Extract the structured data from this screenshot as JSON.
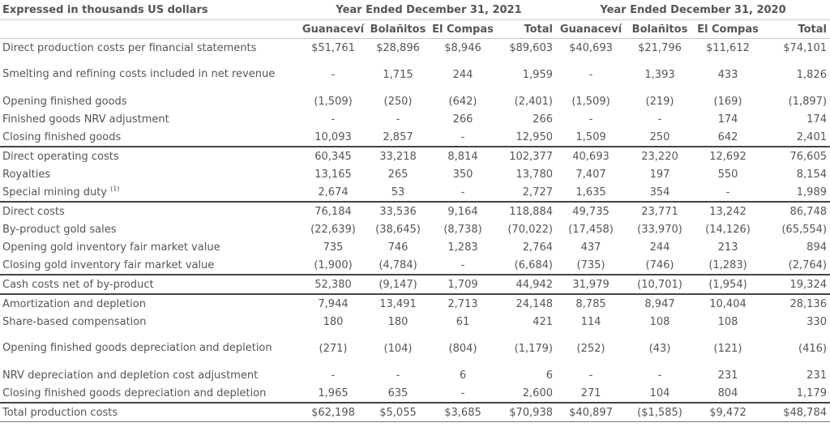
{
  "header": {
    "units_label": "Expressed in thousands US dollars",
    "period_2021": "Year Ended December 31, 2021",
    "period_2020": "Year Ended December 31, 2020",
    "columns": [
      "Guanaceví",
      "Bolañitos",
      "El Compas",
      "Total",
      "Guanaceví",
      "Bolañitos",
      "El Compas",
      "Total"
    ]
  },
  "rows": [
    {
      "label": "Direct production costs per financial statements",
      "values": [
        "$51,761",
        "$28,896",
        "$8,946",
        "$89,603",
        "$40,693",
        "$21,796",
        "$11,612",
        "$74,101"
      ]
    },
    {
      "label": "Smelting and refining costs included in net revenue",
      "values": [
        "-",
        "1,715",
        "244",
        "1,959",
        "-",
        "1,393",
        "433",
        "1,826"
      ]
    },
    {
      "label": "Opening finished goods",
      "values": [
        "(1,509)",
        "(250)",
        "(642)",
        "(2,401)",
        "(1,509)",
        "(219)",
        "(169)",
        "(1,897)"
      ]
    },
    {
      "label": "Finished goods NRV adjustment",
      "values": [
        "-",
        "-",
        "266",
        "266",
        "-",
        "-",
        "174",
        "174"
      ]
    },
    {
      "label": "Closing finished goods",
      "values": [
        "10,093",
        "2,857",
        "-",
        "12,950",
        "1,509",
        "250",
        "642",
        "2,401"
      ]
    },
    {
      "label": "Direct operating costs",
      "values": [
        "60,345",
        "33,218",
        "8,814",
        "102,377",
        "40,693",
        "23,220",
        "12,692",
        "76,605"
      ]
    },
    {
      "label": "Royalties",
      "values": [
        "13,165",
        "265",
        "350",
        "13,780",
        "7,407",
        "197",
        "550",
        "8,154"
      ]
    },
    {
      "label": "Special mining duty",
      "note": "(1)",
      "values": [
        "2,674",
        "53",
        "-",
        "2,727",
        "1,635",
        "354",
        "-",
        "1,989"
      ]
    },
    {
      "label": "Direct costs",
      "values": [
        "76,184",
        "33,536",
        "9,164",
        "118,884",
        "49,735",
        "23,771",
        "13,242",
        "86,748"
      ]
    },
    {
      "label": "By-product gold sales",
      "values": [
        "(22,639)",
        "(38,645)",
        "(8,738)",
        "(70,022)",
        "(17,458)",
        "(33,970)",
        "(14,126)",
        "(65,554)"
      ]
    },
    {
      "label": "Opening gold inventory fair market value",
      "values": [
        "735",
        "746",
        "1,283",
        "2,764",
        "437",
        "244",
        "213",
        "894"
      ]
    },
    {
      "label": "Closing gold inventory fair market value",
      "values": [
        "(1,900)",
        "(4,784)",
        "-",
        "(6,684)",
        "(735)",
        "(746)",
        "(1,283)",
        "(2,764)"
      ]
    },
    {
      "label": "Cash costs net of by-product",
      "values": [
        "52,380",
        "(9,147)",
        "1,709",
        "44,942",
        "31,979",
        "(10,701)",
        "(1,954)",
        "19,324"
      ]
    },
    {
      "label": "Amortization and depletion",
      "values": [
        "7,944",
        "13,491",
        "2,713",
        "24,148",
        "8,785",
        "8,947",
        "10,404",
        "28,136"
      ]
    },
    {
      "label": "Share-based compensation",
      "values": [
        "180",
        "180",
        "61",
        "421",
        "114",
        "108",
        "108",
        "330"
      ]
    },
    {
      "label": "Opening finished goods depreciation and depletion",
      "values": [
        "(271)",
        "(104)",
        "(804)",
        "(1,179)",
        "(252)",
        "(43)",
        "(121)",
        "(416)"
      ]
    },
    {
      "label": "NRV depreciation and depletion cost adjustment",
      "values": [
        "-",
        "-",
        "6",
        "6",
        "-",
        "-",
        "231",
        "231"
      ]
    },
    {
      "label": "Closing finished goods depreciation and depletion",
      "values": [
        "1,965",
        "635",
        "-",
        "2,600",
        "271",
        "104",
        "804",
        "1,179"
      ]
    },
    {
      "label": "Total production costs",
      "values": [
        "$62,198",
        "$5,055",
        "$3,685",
        "$70,938",
        "$40,897",
        "($1,585)",
        "$9,472",
        "$48,784"
      ]
    }
  ]
}
